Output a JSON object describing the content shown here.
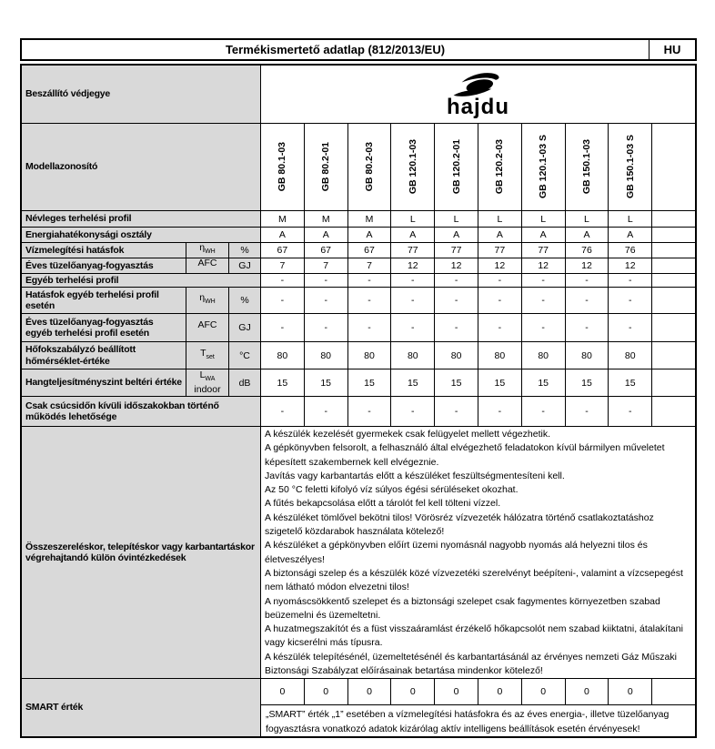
{
  "header": {
    "title": "Termékismertető adatlap (812/2013/EU)",
    "lang": "HU"
  },
  "accent_colors": {
    "header_fill": "#d9d9d9",
    "border": "#000000"
  },
  "table": {
    "supplier_label": "Beszállító védjegye",
    "brand": "hajdu",
    "model_label": "Modellazonosító",
    "models": [
      "GB 80.1-03",
      "GB 80.2-01",
      "GB 80.2-03",
      "GB 120.1-03",
      "GB 120.2-01",
      "GB 120.2-03",
      "GB 120.1-03 S",
      "GB 150.1-03",
      "GB 150.1-03 S",
      ""
    ],
    "spec_rows": [
      {
        "label": "Névleges terhelési profil",
        "values": [
          "M",
          "M",
          "M",
          "L",
          "L",
          "L",
          "L",
          "L",
          "L",
          ""
        ]
      },
      {
        "label": "Energiahatékonysági osztály",
        "values": [
          "A",
          "A",
          "A",
          "A",
          "A",
          "A",
          "A",
          "A",
          "A",
          ""
        ]
      },
      {
        "label": "Vízmelegítési hatásfok",
        "sym": "η",
        "sub": "WH",
        "sym_extra": "",
        "unit": "%",
        "values": [
          "67",
          "67",
          "67",
          "77",
          "77",
          "77",
          "77",
          "76",
          "76",
          ""
        ]
      },
      {
        "label": "Éves tüzelőanyag-fogyasztás",
        "sym": "AFC",
        "sub": "",
        "sym_extra": "",
        "unit": "GJ",
        "values": [
          "7",
          "7",
          "7",
          "12",
          "12",
          "12",
          "12",
          "12",
          "12",
          ""
        ]
      },
      {
        "label": "Egyéb terhelési profil",
        "values": [
          "-",
          "-",
          "-",
          "-",
          "-",
          "-",
          "-",
          "-",
          "-",
          ""
        ]
      },
      {
        "label": "Hatásfok egyéb terhelési profil esetén",
        "sym": "η",
        "sub": "WH",
        "sym_extra": "",
        "unit": "%",
        "values": [
          "-",
          "-",
          "-",
          "-",
          "-",
          "-",
          "-",
          "-",
          "-",
          ""
        ]
      },
      {
        "label": "Éves tüzelőanyag-fogyasztás egyéb terhelési profil esetén",
        "sym": "AFC",
        "sub": "",
        "sym_extra": "",
        "unit": "GJ",
        "values": [
          "-",
          "-",
          "-",
          "-",
          "-",
          "-",
          "-",
          "-",
          "-",
          ""
        ]
      },
      {
        "label": "Hőfokszabályzó beállított hőmérséklet-értéke",
        "sym": "T",
        "sub": "set",
        "sym_extra": "",
        "unit": "°C",
        "values": [
          "80",
          "80",
          "80",
          "80",
          "80",
          "80",
          "80",
          "80",
          "80",
          ""
        ]
      },
      {
        "label": "Hangteljesítményszint beltéri értéke",
        "sym": "L",
        "sub": "WA",
        "sym_extra": "indoor",
        "unit": "dB",
        "values": [
          "15",
          "15",
          "15",
          "15",
          "15",
          "15",
          "15",
          "15",
          "15",
          ""
        ]
      },
      {
        "label": "Csak csúcsidőn kívüli időszakokban történő működés lehetősége",
        "values": [
          "-",
          "-",
          "-",
          "-",
          "-",
          "-",
          "-",
          "-",
          "-",
          ""
        ]
      }
    ],
    "precautions": {
      "label": "Összeszereléskor, telepítéskor vagy karbantartáskor végrehajtandó külön óvintézkedések",
      "lines": [
        "A készülék kezelését gyermekek csak felügyelet mellett végezhetik.",
        "A gépkönyvben felsorolt, a felhasználó által elvégezhető feladatokon kívül bármilyen műveletet képesített szakembernek kell elvégeznie.",
        "Javítás vagy karbantartás előtt a készüléket feszültségmentesíteni kell.",
        "Az 50 °C feletti kifolyó víz súlyos égési sérüléseket okozhat.",
        "A fűtés bekapcsolása előtt a tárolót fel kell tölteni vízzel.",
        "A készüléket tömlővel bekötni tilos! Vörösréz vízvezeték hálózatra történő csatlakoztatáshoz szigetelő közdarabok használata kötelező!",
        "A készüléket a gépkönyvben előírt üzemi nyomásnál nagyobb nyomás alá helyezni tilos és életveszélyes!",
        "A biztonsági szelep és a készülék közé vízvezetéki szerelvényt beépíteni-, valamint a vízcsepegést nem látható módon elvezetni tilos!",
        "A nyomáscsökkentő szelepet és a biztonsági szelepet csak fagymentes környezetben szabad beüzemelni és üzemeltetni.",
        "A huzatmegszakítót és a füst visszaáramlást érzékelő hőkapcsolót nem szabad kiiktatni, átalakítani vagy kicserélni más típusra.",
        "A készülék telepítésénél, üzemeltetésénél és karbantartásánál az érvényes nemzeti Gáz Műszaki Biztonsági Szabályzat előírásainak betartása mindenkor kötelező!"
      ]
    },
    "smart": {
      "label": "SMART érték",
      "zeros": [
        "0",
        "0",
        "0",
        "0",
        "0",
        "0",
        "0",
        "0",
        "0",
        ""
      ],
      "text": "„SMART” érték „1” esetében  a vízmelegítési hatásfokra és az éves energia-, illetve tüzelőanyag fogyasztásra vonatkozó adatok kizárólag aktív intelligens beállítások esetén érvényesek!"
    }
  }
}
